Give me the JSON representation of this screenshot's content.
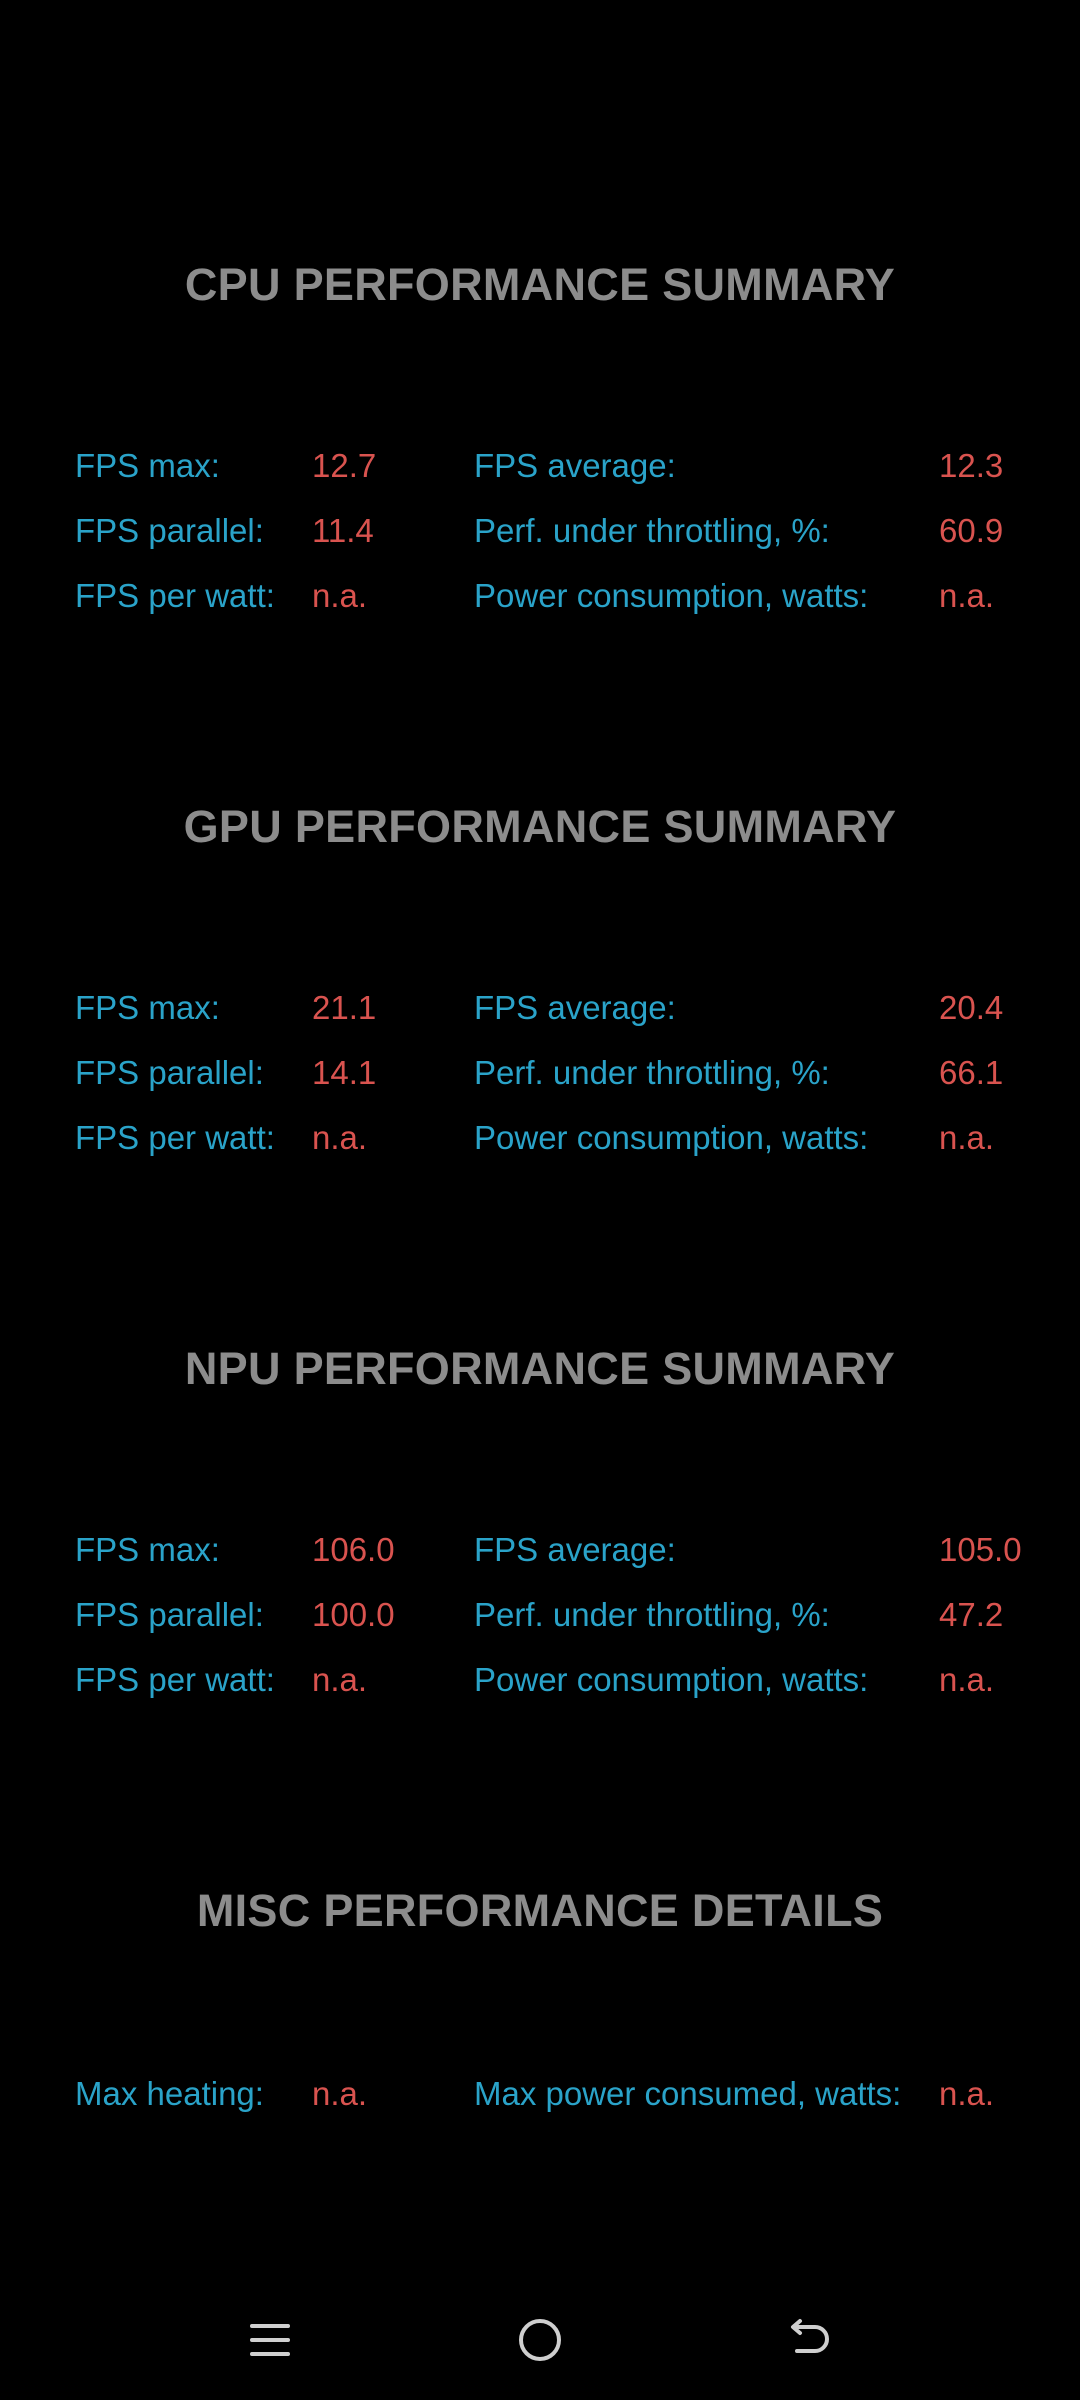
{
  "sections": [
    {
      "title": "CPU PERFORMANCE SUMMARY",
      "rows": [
        {
          "left_label": "FPS max:",
          "left_value": "12.7",
          "right_label": "FPS average:",
          "right_value": "12.3"
        },
        {
          "left_label": "FPS parallel:",
          "left_value": "11.4",
          "right_label": "Perf. under throttling, %:",
          "right_value": "60.9"
        },
        {
          "left_label": "FPS per watt:",
          "left_value": "n.a.",
          "right_label": "Power consumption, watts:",
          "right_value": "n.a."
        }
      ]
    },
    {
      "title": "GPU PERFORMANCE SUMMARY",
      "rows": [
        {
          "left_label": "FPS max:",
          "left_value": "21.1",
          "right_label": "FPS average:",
          "right_value": "20.4"
        },
        {
          "left_label": "FPS parallel:",
          "left_value": "14.1",
          "right_label": "Perf. under throttling, %:",
          "right_value": "66.1"
        },
        {
          "left_label": "FPS per watt:",
          "left_value": "n.a.",
          "right_label": "Power consumption, watts:",
          "right_value": "n.a."
        }
      ]
    },
    {
      "title": "NPU PERFORMANCE SUMMARY",
      "rows": [
        {
          "left_label": "FPS max:",
          "left_value": "106.0",
          "right_label": "FPS average:",
          "right_value": "105.0"
        },
        {
          "left_label": "FPS parallel:",
          "left_value": "100.0",
          "right_label": "Perf. under throttling, %:",
          "right_value": "47.2"
        },
        {
          "left_label": "FPS per watt:",
          "left_value": "n.a.",
          "right_label": "Power consumption, watts:",
          "right_value": "n.a."
        }
      ]
    },
    {
      "title": "MISC PERFORMANCE DETAILS",
      "rows": [
        {
          "left_label": "Max heating:",
          "left_value": "n.a.",
          "right_label": "Max power consumed, watts:",
          "right_value": "n.a."
        }
      ]
    }
  ],
  "navbar": {
    "icons": [
      "menu-icon",
      "home-icon",
      "back-icon"
    ]
  },
  "colors": {
    "background": "#000000",
    "title": "#8c8c8c",
    "label": "#2aa3c9",
    "value": "#d9534f",
    "nav_icon": "#cfcfcf"
  }
}
